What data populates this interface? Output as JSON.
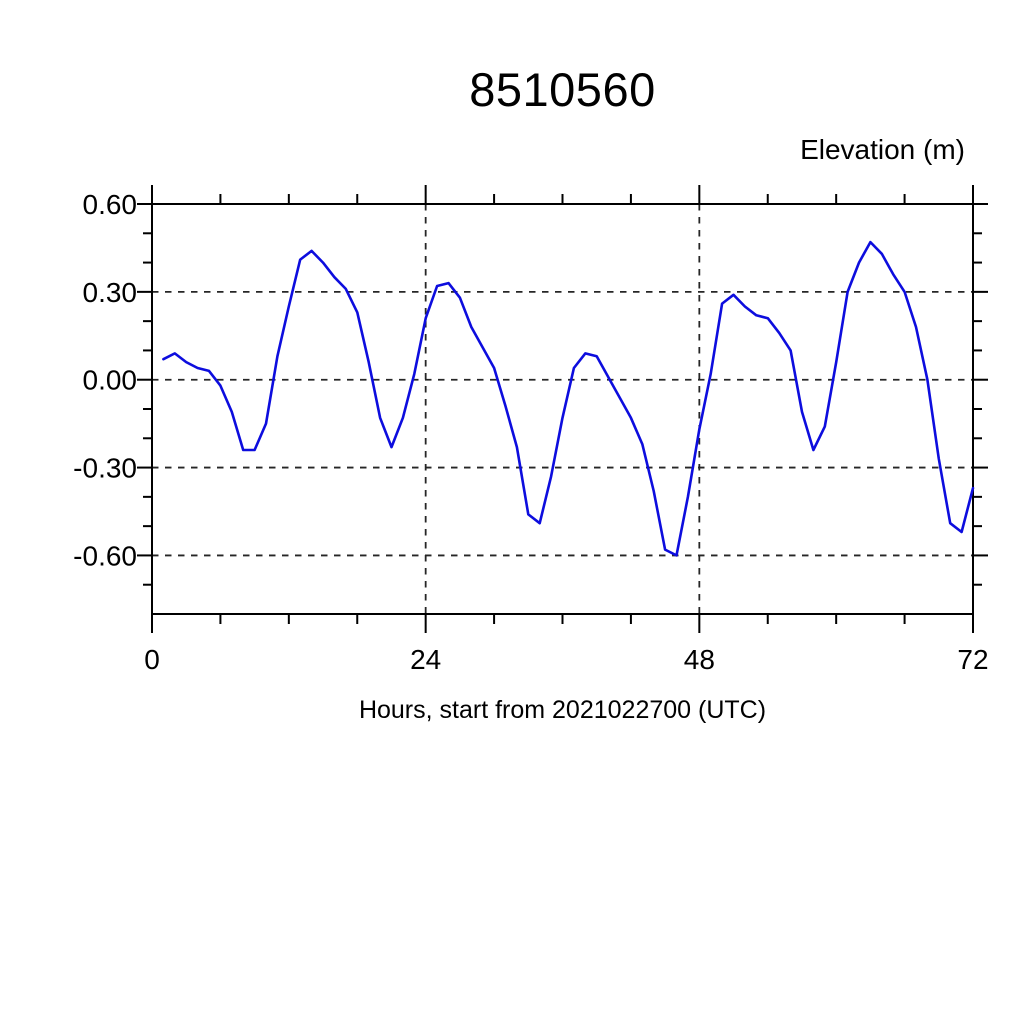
{
  "title": "8510560",
  "y_axis_title": "Elevation (m)",
  "x_axis_label": "Hours, start from 2021022700 (UTC)",
  "colors": {
    "line": "#0d0dde",
    "frame": "#000000",
    "grid": "#262626",
    "background": "#ffffff",
    "text": "#000000"
  },
  "chart_data": {
    "type": "line",
    "title": "8510560",
    "xlabel": "Hours, start from 2021022700 (UTC)",
    "ylabel": "Elevation (m)",
    "xlim": [
      0,
      72
    ],
    "ylim": [
      -0.8,
      0.6
    ],
    "x_major_ticks": [
      0,
      24,
      48,
      72
    ],
    "x_tick_labels": [
      "0",
      "24",
      "48",
      "72"
    ],
    "x_minor_step": 6,
    "y_major_ticks": [
      0.6,
      0.3,
      0.0,
      -0.3,
      -0.6
    ],
    "y_tick_labels": [
      "0.60",
      "0.30",
      "0.00",
      "-0.30",
      "-0.60"
    ],
    "y_minor_step": 0.1,
    "x_gridlines": [
      24,
      48
    ],
    "y_gridlines": [
      0.6,
      0.3,
      0.0,
      -0.3,
      -0.6
    ],
    "grid": "dashed",
    "legend": "none",
    "series": [
      {
        "name": "elevation",
        "x_start": 1,
        "x_step": 1,
        "values": [
          0.07,
          0.09,
          0.06,
          0.04,
          0.03,
          -0.02,
          -0.11,
          -0.24,
          -0.24,
          -0.15,
          0.08,
          0.25,
          0.41,
          0.44,
          0.4,
          0.35,
          0.31,
          0.23,
          0.06,
          -0.13,
          -0.23,
          -0.13,
          0.02,
          0.21,
          0.32,
          0.33,
          0.28,
          0.18,
          0.11,
          0.04,
          -0.09,
          -0.23,
          -0.46,
          -0.49,
          -0.33,
          -0.13,
          0.04,
          0.09,
          0.08,
          0.01,
          -0.06,
          -0.13,
          -0.22,
          -0.38,
          -0.58,
          -0.6,
          -0.4,
          -0.17,
          0.02,
          0.26,
          0.29,
          0.25,
          0.22,
          0.21,
          0.16,
          0.1,
          -0.11,
          -0.24,
          -0.16,
          0.06,
          0.3,
          0.4,
          0.47,
          0.43,
          0.36,
          0.3,
          0.18,
          0.0,
          -0.27,
          -0.49,
          -0.52,
          -0.37
        ]
      }
    ]
  }
}
